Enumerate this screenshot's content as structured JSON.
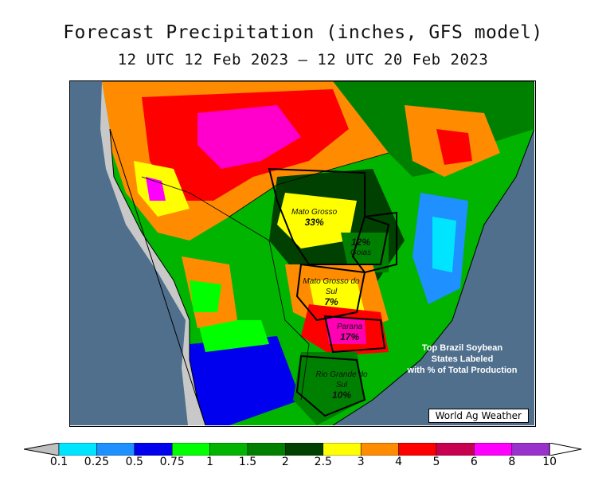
{
  "title": "Forecast Precipitation (inches, GFS model)",
  "subtitle": "12 UTC 12 Feb 2023 – 12 UTC 20 Feb 2023",
  "states": [
    {
      "name": "Mato Grosso",
      "percent": "33%"
    },
    {
      "name": "Goias",
      "percent": "12%"
    },
    {
      "name": "Mato Grosso do Sul",
      "percent": "7%"
    },
    {
      "name": "Parana",
      "percent": "17%"
    },
    {
      "name": "Rio Grande do Sul",
      "percent": "10%"
    }
  ],
  "note": {
    "line1": "Top Brazil Soybean",
    "line2": "States Labeled",
    "line3": "with % of Total Production"
  },
  "brand": "World Ag Weather",
  "colors": {
    "ocean": "#4f6f8d",
    "outside_land": "#c8c8c8"
  },
  "legend": {
    "ticks": [
      "0.1",
      "0.25",
      "0.5",
      "0.75",
      "1",
      "1.5",
      "2",
      "2.5",
      "3",
      "4",
      "5",
      "6",
      "8",
      "10"
    ],
    "colors": [
      "#00e5ff",
      "#1e90ff",
      "#0000ee",
      "#00ff00",
      "#00b400",
      "#008000",
      "#004000",
      "#ffff00",
      "#ff8c00",
      "#ff0000",
      "#c80050",
      "#ff00ff",
      "#9932cc"
    ],
    "below_color": "#c0c0c0",
    "above_color": "#ffffff"
  }
}
